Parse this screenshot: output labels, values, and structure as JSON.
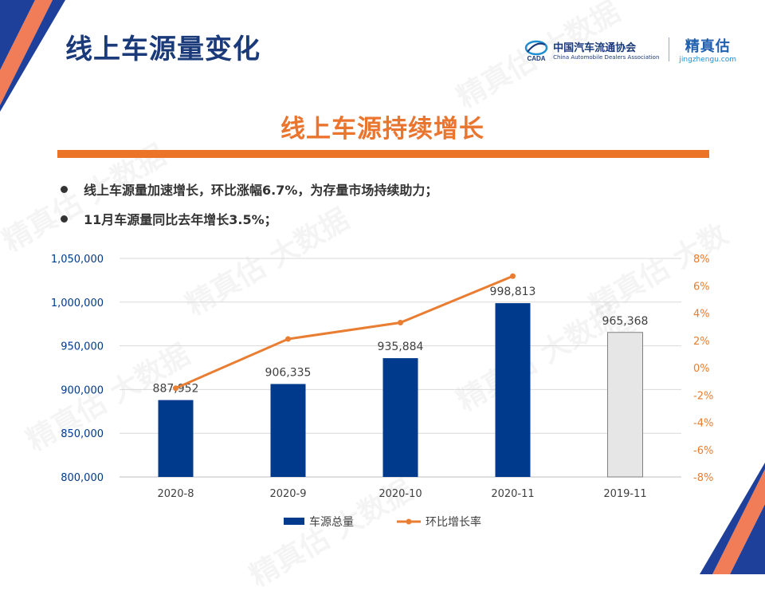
{
  "header": {
    "title": "线上车源量变化",
    "cada_cn": "中国汽车流通协会",
    "cada_en": "China Automobile Dealers Association",
    "cada_logo_text": "CADA",
    "jzg_cn": "精真估",
    "jzg_en": "jingzhengu.com"
  },
  "subtitle": "线上车源持续增长",
  "bullets": [
    "线上车源量加速增长，环比涨幅6.7%，为存量市场持续助力；",
    "11月车源量同比去年增长3.5%；"
  ],
  "watermark": "精真估 大数据",
  "colors": {
    "navy": "#003a8c",
    "orange": "#e97d32",
    "highlight_bar": "#e6e6e6",
    "title": "#1a3a7a"
  },
  "chart_data": {
    "type": "bar",
    "categories": [
      "2020-8",
      "2020-9",
      "2020-10",
      "2020-11",
      "2019-11"
    ],
    "series": [
      {
        "name": "车源总量",
        "type": "bar",
        "axis": "left",
        "values": [
          887952,
          906335,
          935884,
          998813,
          965368
        ],
        "labels": [
          "887,952",
          "906,335",
          "935,884",
          "998,813",
          "965,368"
        ]
      },
      {
        "name": "环比增长率",
        "type": "line",
        "axis": "right",
        "values": [
          -1.5,
          2.1,
          3.3,
          6.7,
          null
        ]
      }
    ],
    "y_left": {
      "min": 800000,
      "max": 1050000,
      "ticks": [
        "800,000",
        "850,000",
        "900,000",
        "950,000",
        "1,000,000",
        "1,050,000"
      ]
    },
    "y_right": {
      "min": -8,
      "max": 8,
      "ticks": [
        "-8%",
        "-6%",
        "-4%",
        "-2%",
        "0%",
        "2%",
        "4%",
        "6%",
        "8%"
      ]
    },
    "grid": true,
    "legend": "bottom"
  }
}
